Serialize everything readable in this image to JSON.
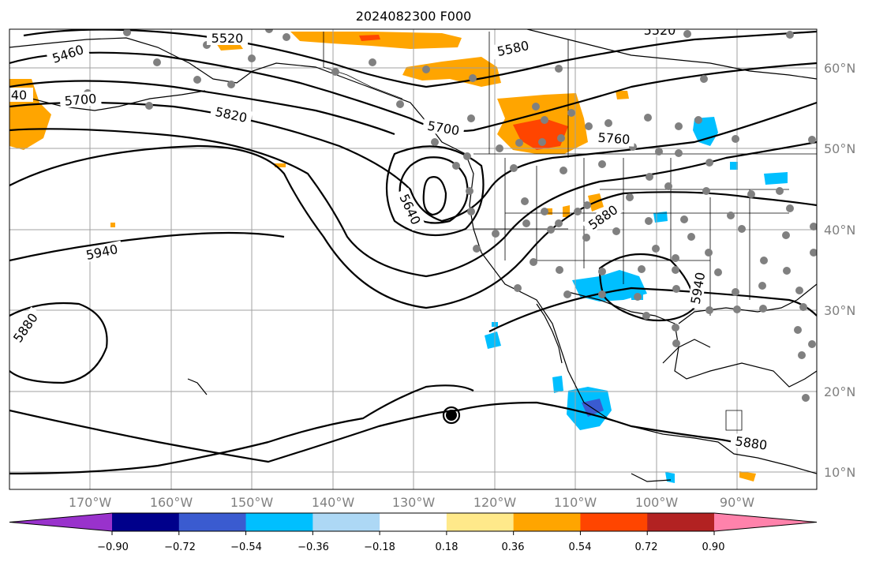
{
  "map": {
    "title": "2024082300 F000",
    "lat_labels": [
      "60°N",
      "50°N",
      "40°N",
      "30°N",
      "20°N",
      "10°N"
    ],
    "lon_labels": [
      "170°W",
      "160°W",
      "150°W",
      "140°W",
      "130°W",
      "120°W",
      "110°W",
      "100°W",
      "90°W"
    ],
    "contour_labels": [
      "5520",
      "5460",
      "5580",
      "5520",
      "40",
      "5700",
      "5820",
      "5700",
      "5760",
      "5640",
      "5880",
      "5940",
      "5880",
      "5940",
      "5880"
    ],
    "colors": {
      "contour": "#000000",
      "orange_shade": "#FFA500",
      "red_shade": "#FF4500",
      "blue_shade": "#00BFFF",
      "dark_blue_shade": "#3A5BD0",
      "station_dot": "#808080",
      "grid": "#A0A0A0"
    }
  },
  "colorbar": {
    "tick_labels": [
      "−0.90",
      "−0.72",
      "−0.54",
      "−0.36",
      "−0.18",
      "0.18",
      "0.36",
      "0.54",
      "0.72",
      "0.90"
    ],
    "colors": [
      "#9932CC",
      "#00008B",
      "#3A5BD0",
      "#00BFFF",
      "#ADD8F5",
      "#FFFFFF",
      "#FFE98A",
      "#FFA500",
      "#FF4500",
      "#B22222",
      "#FF82AB"
    ]
  }
}
